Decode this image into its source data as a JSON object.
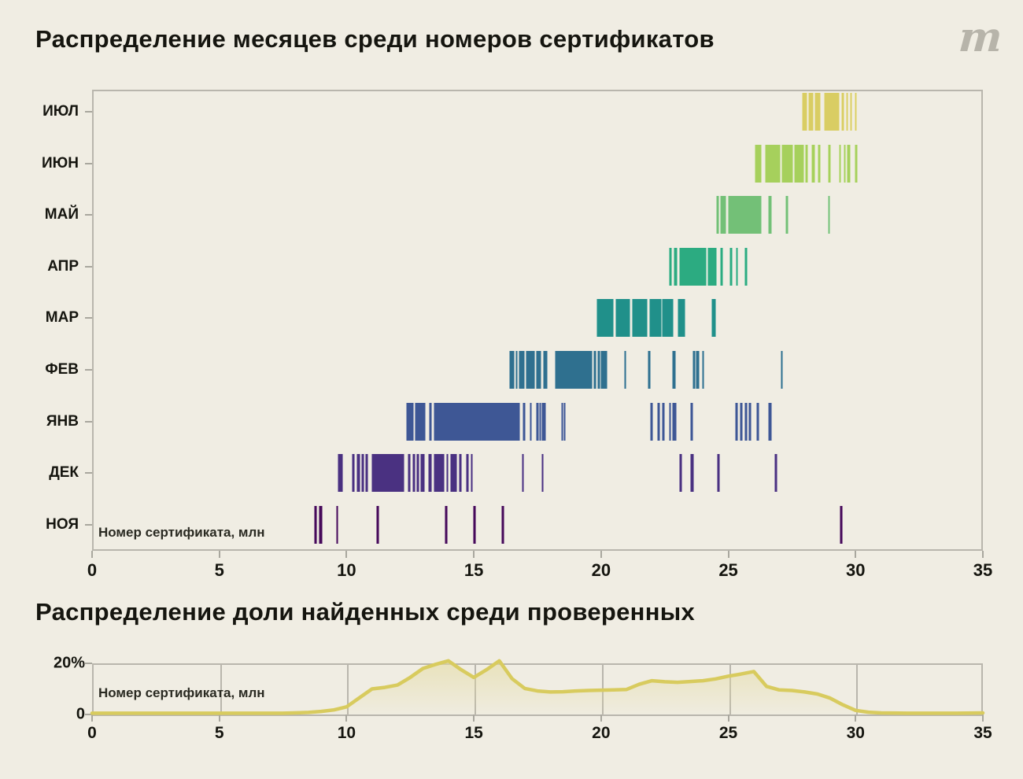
{
  "page": {
    "background": "#f0ede3",
    "logo_glyph": "m",
    "logo_name": "meduza-logo"
  },
  "chart1": {
    "title": "Распределение месяцев среди номеров сертификатов",
    "inner_label": "Номер сертификата, млн"
  },
  "chart2": {
    "title": "Распределение доли найденных среди проверенных",
    "inner_label": "Номер сертификата, млн"
  },
  "chart_data": [
    {
      "type": "strip",
      "title": "Распределение месяцев среди номеров сертификатов",
      "xlabel": "Номер сертификата, млн",
      "xlim": [
        0,
        35
      ],
      "x_ticks": [
        0,
        5,
        10,
        15,
        20,
        25,
        30,
        35
      ],
      "grid": false,
      "rows": [
        {
          "label": "ИЮЛ",
          "color": "#d9cd63",
          "segments": [
            [
              27.9,
              28.1
            ],
            [
              28.13,
              28.34
            ],
            [
              28.37,
              28.64
            ],
            [
              28.74,
              29.36
            ],
            [
              29.44,
              29.52
            ],
            [
              29.62,
              29.7
            ],
            [
              29.76,
              29.84
            ],
            [
              29.96,
              30.04
            ]
          ]
        },
        {
          "label": "ИЮН",
          "color": "#a6d05c",
          "segments": [
            [
              26.04,
              26.31
            ],
            [
              26.45,
              27.04
            ],
            [
              27.07,
              27.55
            ],
            [
              27.58,
              27.97
            ],
            [
              28.02,
              28.12
            ],
            [
              28.25,
              28.41
            ],
            [
              28.52,
              28.62
            ],
            [
              28.9,
              29.03
            ],
            [
              29.34,
              29.44
            ],
            [
              29.52,
              29.59
            ],
            [
              29.65,
              29.8
            ],
            [
              29.96,
              30.07
            ]
          ]
        },
        {
          "label": "МАЙ",
          "color": "#73c077",
          "segments": [
            [
              24.53,
              24.62
            ],
            [
              24.66,
              24.92
            ],
            [
              24.97,
              26.3
            ],
            [
              26.57,
              26.7
            ],
            [
              27.24,
              27.35
            ],
            [
              28.9,
              29.01
            ]
          ]
        },
        {
          "label": "АПР",
          "color": "#2cab81",
          "segments": [
            [
              22.67,
              22.8
            ],
            [
              22.86,
              22.99
            ],
            [
              23.08,
              24.14
            ],
            [
              24.17,
              24.56
            ],
            [
              24.66,
              24.79
            ],
            [
              25.05,
              25.15
            ],
            [
              25.28,
              25.39
            ],
            [
              25.64,
              25.75
            ]
          ]
        },
        {
          "label": "МАР",
          "color": "#20908a",
          "segments": [
            [
              19.81,
              20.51
            ],
            [
              20.56,
              21.15
            ],
            [
              21.2,
              21.82
            ],
            [
              21.88,
              22.37
            ],
            [
              22.4,
              22.86
            ],
            [
              22.99,
              23.32
            ],
            [
              24.32,
              24.51
            ]
          ]
        },
        {
          "label": "ФЕВ",
          "color": "#2f708f",
          "segments": [
            [
              16.38,
              16.59
            ],
            [
              16.63,
              16.71
            ],
            [
              16.75,
              17.02
            ],
            [
              17.05,
              17.4
            ],
            [
              17.45,
              17.64
            ],
            [
              17.72,
              17.9
            ],
            [
              18.18,
              19.65
            ],
            [
              19.71,
              19.79
            ],
            [
              19.85,
              19.91
            ],
            [
              19.97,
              20.25
            ],
            [
              20.9,
              20.98
            ],
            [
              21.83,
              21.96
            ],
            [
              22.8,
              22.93
            ],
            [
              23.6,
              23.7
            ],
            [
              23.73,
              23.86
            ],
            [
              23.96,
              24.07
            ],
            [
              27.04,
              27.16
            ]
          ]
        },
        {
          "label": "ЯНВ",
          "color": "#3e5795",
          "segments": [
            [
              12.33,
              12.64
            ],
            [
              12.69,
              13.1
            ],
            [
              13.23,
              13.36
            ],
            [
              13.41,
              16.82
            ],
            [
              16.92,
              17.02
            ],
            [
              17.18,
              17.28
            ],
            [
              17.44,
              17.52
            ],
            [
              17.56,
              17.62
            ],
            [
              17.66,
              17.85
            ],
            [
              18.42,
              18.49
            ],
            [
              18.52,
              18.57
            ],
            [
              21.91,
              22.03
            ],
            [
              22.19,
              22.31
            ],
            [
              22.37,
              22.5
            ],
            [
              22.65,
              22.77
            ],
            [
              22.8,
              22.96
            ],
            [
              23.51,
              23.63
            ],
            [
              25.26,
              25.39
            ],
            [
              25.44,
              25.56
            ],
            [
              25.62,
              25.75
            ],
            [
              25.8,
              25.92
            ],
            [
              26.09,
              26.21
            ],
            [
              26.57,
              26.71
            ]
          ]
        },
        {
          "label": "ДЕК",
          "color": "#4a3181",
          "segments": [
            [
              9.64,
              9.85
            ],
            [
              10.21,
              10.31
            ],
            [
              10.4,
              10.53
            ],
            [
              10.58,
              10.67
            ],
            [
              10.73,
              10.81
            ],
            [
              10.99,
              12.27
            ],
            [
              12.4,
              12.53
            ],
            [
              12.58,
              12.7
            ],
            [
              12.74,
              12.84
            ],
            [
              12.89,
              13.08
            ],
            [
              13.2,
              13.36
            ],
            [
              13.41,
              13.84
            ],
            [
              13.9,
              14.01
            ],
            [
              14.06,
              14.34
            ],
            [
              14.42,
              14.52
            ],
            [
              14.7,
              14.8
            ],
            [
              14.87,
              14.98
            ],
            [
              16.87,
              16.99
            ],
            [
              17.64,
              17.75
            ],
            [
              23.06,
              23.2
            ],
            [
              23.51,
              23.65
            ],
            [
              24.54,
              24.68
            ],
            [
              26.81,
              26.93
            ]
          ]
        },
        {
          "label": "НОЯ",
          "color": "#46095a",
          "segments": [
            [
              8.71,
              8.85
            ],
            [
              8.92,
              9.05
            ],
            [
              9.57,
              9.69
            ],
            [
              11.17,
              11.29
            ],
            [
              13.85,
              13.98
            ],
            [
              14.96,
              15.08
            ],
            [
              16.07,
              16.2
            ],
            [
              29.36,
              29.49
            ]
          ]
        }
      ]
    },
    {
      "type": "area",
      "title": "Распределение доли найденных среди проверенных",
      "xlabel": "Номер сертификата, млн",
      "xlim": [
        0,
        35
      ],
      "ylim": [
        0,
        20
      ],
      "x_ticks": [
        0,
        5,
        10,
        15,
        20,
        25,
        30,
        35
      ],
      "y_ticks": [
        {
          "value": 20,
          "label": "20%"
        },
        {
          "value": 0,
          "label": "0"
        }
      ],
      "line_color": "#d8cb5e",
      "fill_color": "#e3daa0",
      "grid": true,
      "points": [
        [
          0,
          0.5
        ],
        [
          2,
          0.5
        ],
        [
          4,
          0.5
        ],
        [
          6,
          0.5
        ],
        [
          7.5,
          0.5
        ],
        [
          8.5,
          0.8
        ],
        [
          9,
          1.2
        ],
        [
          9.5,
          1.8
        ],
        [
          10,
          3
        ],
        [
          10.5,
          6.5
        ],
        [
          11,
          10
        ],
        [
          11.5,
          10.6
        ],
        [
          12,
          11.5
        ],
        [
          12.5,
          14.5
        ],
        [
          13,
          18
        ],
        [
          13.5,
          19.6
        ],
        [
          14,
          21
        ],
        [
          14.5,
          17.5
        ],
        [
          15,
          14.5
        ],
        [
          15.5,
          17.5
        ],
        [
          16,
          21
        ],
        [
          16.5,
          14
        ],
        [
          17,
          10.2
        ],
        [
          17.5,
          9.2
        ],
        [
          18,
          8.8
        ],
        [
          18.5,
          8.9
        ],
        [
          19,
          9.2
        ],
        [
          19.5,
          9.4
        ],
        [
          20,
          9.5
        ],
        [
          20.5,
          9.6
        ],
        [
          21,
          9.8
        ],
        [
          21.5,
          11.8
        ],
        [
          22,
          13.2
        ],
        [
          22.5,
          12.8
        ],
        [
          23,
          12.6
        ],
        [
          23.5,
          12.9
        ],
        [
          24,
          13.2
        ],
        [
          24.5,
          13.9
        ],
        [
          25,
          15
        ],
        [
          25.5,
          15.8
        ],
        [
          26,
          16.8
        ],
        [
          26.5,
          11
        ],
        [
          27,
          9.6
        ],
        [
          27.5,
          9.4
        ],
        [
          28,
          8.8
        ],
        [
          28.5,
          8
        ],
        [
          29,
          6.4
        ],
        [
          29.5,
          3.8
        ],
        [
          30,
          1.6
        ],
        [
          30.5,
          0.9
        ],
        [
          31,
          0.6
        ],
        [
          32,
          0.5
        ],
        [
          33,
          0.5
        ],
        [
          34,
          0.5
        ],
        [
          35,
          0.6
        ]
      ]
    }
  ]
}
